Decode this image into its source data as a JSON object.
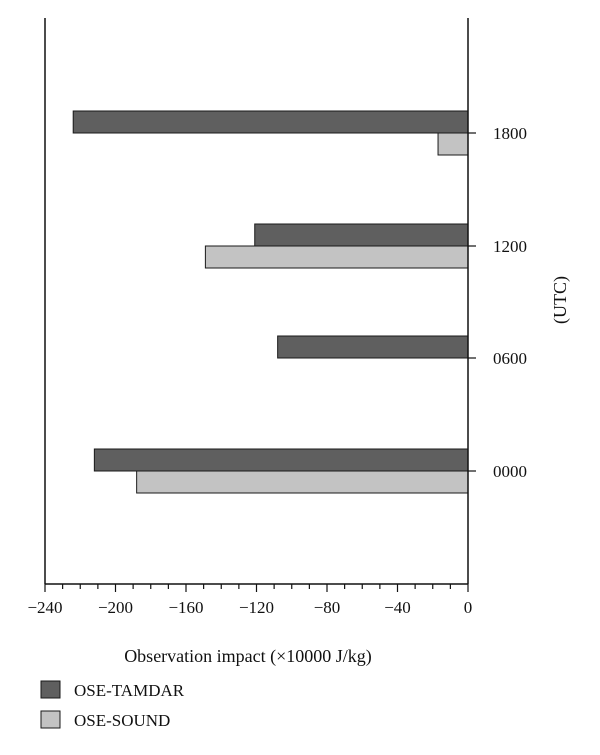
{
  "chart_data": {
    "type": "bar",
    "orientation": "horizontal",
    "categories": [
      "0000",
      "0600",
      "1200",
      "1800"
    ],
    "series": [
      {
        "name": "OSE-TAMDAR",
        "values": [
          -212,
          -108,
          -121,
          -224
        ]
      },
      {
        "name": "OSE-SOUND",
        "values": [
          -188,
          null,
          -149,
          -17
        ]
      }
    ],
    "xlabel": "Observation impact (×10000 J/kg)",
    "ylabel": "(UTC)",
    "xlim": [
      -240,
      0
    ],
    "xticks": [
      -240,
      -200,
      -160,
      -120,
      -80,
      -40,
      0
    ],
    "xtick_labels": [
      "−240",
      "−200",
      "−160",
      "−120",
      "−80",
      "−40",
      "0"
    ],
    "grid": false,
    "legend_position": "bottom-left",
    "colors": {
      "OSE-TAMDAR": "#5f5f5f",
      "OSE-SOUND": "#c3c3c3",
      "bar_stroke": "#1a1a1a",
      "axis": "#111111"
    }
  }
}
